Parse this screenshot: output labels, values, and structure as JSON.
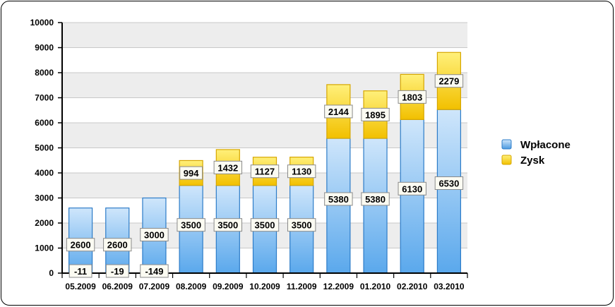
{
  "chart_data": {
    "type": "bar",
    "stacked": true,
    "categories": [
      "05.2009",
      "06.2009",
      "07.2009",
      "08.2009",
      "09.2009",
      "10.2009",
      "11.2009",
      "12.2009",
      "01.2010",
      "02.2010",
      "03.2010"
    ],
    "series": [
      {
        "name": "Wpłacone",
        "values": [
          2600,
          2600,
          3000,
          3500,
          3500,
          3500,
          3500,
          5380,
          5380,
          6130,
          6530
        ],
        "color": "#5aa8e8"
      },
      {
        "name": "Zysk",
        "values": [
          -11,
          -19,
          -149,
          994,
          1432,
          1127,
          1130,
          2144,
          1895,
          1803,
          2279
        ],
        "color": "#f5c400"
      }
    ],
    "title": "",
    "xlabel": "",
    "ylabel": "",
    "ylim": [
      0,
      10000
    ],
    "yticks": [
      0,
      1000,
      2000,
      3000,
      4000,
      5000,
      6000,
      7000,
      8000,
      9000,
      10000
    ],
    "grid": true,
    "legend": "right"
  }
}
